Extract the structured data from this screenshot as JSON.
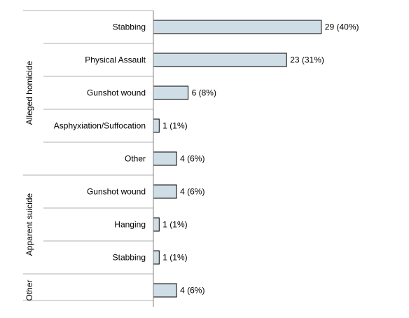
{
  "chart_data": {
    "type": "bar",
    "orientation": "horizontal",
    "title": "",
    "xlabel": "",
    "ylabel": "",
    "xlim": [
      0,
      30
    ],
    "grid": false,
    "legend": "none",
    "bar_color": "#cfdde6",
    "groups": [
      {
        "name": "Alleged homicide",
        "categories": [
          "Stabbing",
          "Physical Assault",
          "Gunshot wound",
          "Asphyxiation/Suffocation",
          "Other"
        ]
      },
      {
        "name": "Apparent suicide",
        "categories": [
          "Gunshot wound",
          "Hanging",
          "Stabbing"
        ]
      },
      {
        "name": "Other",
        "categories": [
          ""
        ]
      }
    ],
    "categories": [
      "Stabbing",
      "Physical Assault",
      "Gunshot wound",
      "Asphyxiation/Suffocation",
      "Other",
      "Gunshot wound",
      "Hanging",
      "Stabbing",
      ""
    ],
    "values": [
      29,
      23,
      6,
      1,
      4,
      4,
      1,
      1,
      4
    ],
    "data_labels": [
      "29 (40%)",
      "23 (31%)",
      "6 (8%)",
      "1 (1%)",
      "4 (6%)",
      "4 (6%)",
      "1 (1%)",
      "1 (1%)",
      "4 (6%)"
    ]
  }
}
